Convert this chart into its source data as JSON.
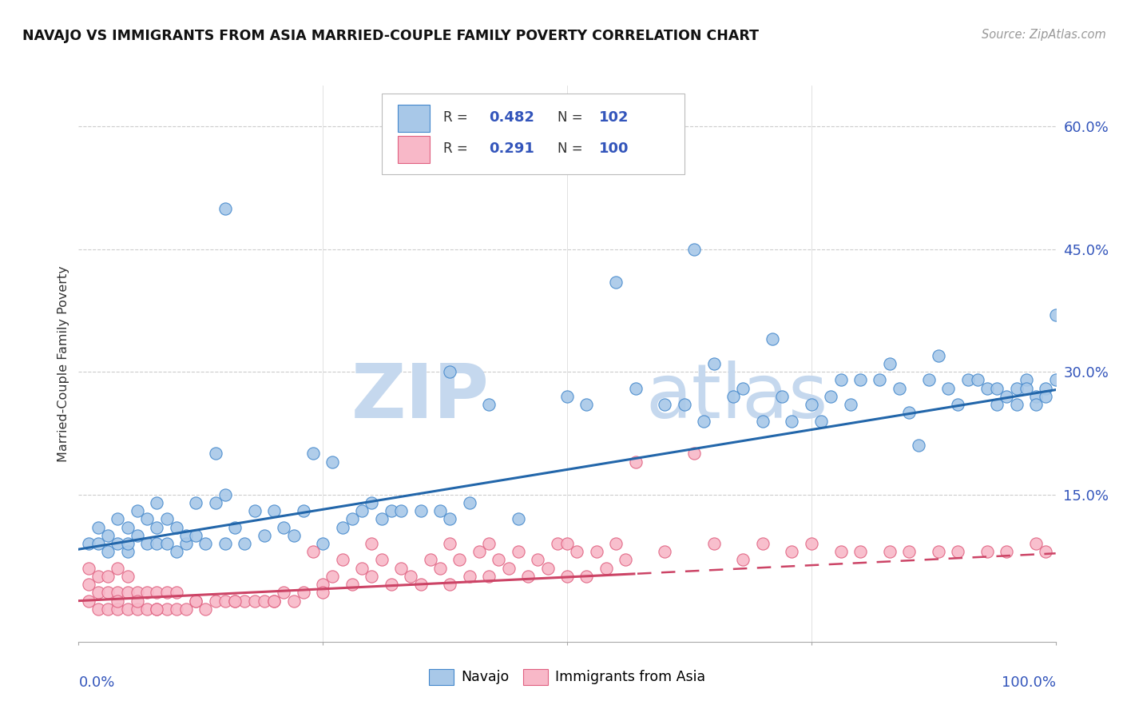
{
  "title": "NAVAJO VS IMMIGRANTS FROM ASIA MARRIED-COUPLE FAMILY POVERTY CORRELATION CHART",
  "source": "Source: ZipAtlas.com",
  "ylabel": "Married-Couple Family Poverty",
  "yticks": [
    0.0,
    0.15,
    0.3,
    0.45,
    0.6
  ],
  "ytick_labels": [
    "",
    "15.0%",
    "30.0%",
    "45.0%",
    "60.0%"
  ],
  "xlim": [
    0.0,
    1.0
  ],
  "ylim": [
    -0.03,
    0.65
  ],
  "navajo_color": "#a8c8e8",
  "navajo_edge_color": "#4488cc",
  "navajo_line_color": "#2266aa",
  "asia_color": "#f8b8c8",
  "asia_edge_color": "#e06080",
  "asia_line_color": "#cc4466",
  "navajo_line_intercept": 0.083,
  "navajo_line_slope": 0.195,
  "asia_line_intercept": 0.02,
  "asia_line_slope": 0.058,
  "asia_line_solid_end": 0.57,
  "watermark_zip": "ZIP",
  "watermark_atlas": "atlas",
  "watermark_color": "#c5d8ee",
  "navajo_x": [
    0.01,
    0.02,
    0.02,
    0.03,
    0.03,
    0.04,
    0.04,
    0.05,
    0.05,
    0.05,
    0.06,
    0.06,
    0.07,
    0.07,
    0.08,
    0.08,
    0.08,
    0.09,
    0.09,
    0.1,
    0.1,
    0.11,
    0.11,
    0.12,
    0.12,
    0.13,
    0.14,
    0.14,
    0.15,
    0.15,
    0.16,
    0.17,
    0.18,
    0.19,
    0.2,
    0.21,
    0.22,
    0.23,
    0.24,
    0.25,
    0.26,
    0.27,
    0.28,
    0.29,
    0.3,
    0.31,
    0.32,
    0.33,
    0.35,
    0.37,
    0.38,
    0.4,
    0.42,
    0.45,
    0.5,
    0.52,
    0.55,
    0.57,
    0.6,
    0.62,
    0.63,
    0.64,
    0.65,
    0.67,
    0.68,
    0.7,
    0.71,
    0.72,
    0.73,
    0.75,
    0.76,
    0.77,
    0.78,
    0.79,
    0.8,
    0.82,
    0.83,
    0.84,
    0.85,
    0.86,
    0.87,
    0.88,
    0.89,
    0.9,
    0.91,
    0.92,
    0.93,
    0.94,
    0.94,
    0.95,
    0.96,
    0.96,
    0.97,
    0.97,
    0.98,
    0.98,
    0.99,
    0.99,
    1.0,
    1.0,
    0.15,
    0.38
  ],
  "navajo_y": [
    0.09,
    0.09,
    0.11,
    0.08,
    0.1,
    0.09,
    0.12,
    0.08,
    0.11,
    0.09,
    0.1,
    0.13,
    0.09,
    0.12,
    0.09,
    0.11,
    0.14,
    0.09,
    0.12,
    0.08,
    0.11,
    0.09,
    0.1,
    0.1,
    0.14,
    0.09,
    0.2,
    0.14,
    0.09,
    0.15,
    0.11,
    0.09,
    0.13,
    0.1,
    0.13,
    0.11,
    0.1,
    0.13,
    0.2,
    0.09,
    0.19,
    0.11,
    0.12,
    0.13,
    0.14,
    0.12,
    0.13,
    0.13,
    0.13,
    0.13,
    0.12,
    0.14,
    0.26,
    0.12,
    0.27,
    0.26,
    0.41,
    0.28,
    0.26,
    0.26,
    0.45,
    0.24,
    0.31,
    0.27,
    0.28,
    0.24,
    0.34,
    0.27,
    0.24,
    0.26,
    0.24,
    0.27,
    0.29,
    0.26,
    0.29,
    0.29,
    0.31,
    0.28,
    0.25,
    0.21,
    0.29,
    0.32,
    0.28,
    0.26,
    0.29,
    0.29,
    0.28,
    0.28,
    0.26,
    0.27,
    0.28,
    0.26,
    0.29,
    0.28,
    0.27,
    0.26,
    0.28,
    0.27,
    0.29,
    0.37,
    0.5,
    0.3
  ],
  "asia_x": [
    0.01,
    0.01,
    0.01,
    0.02,
    0.02,
    0.02,
    0.03,
    0.03,
    0.03,
    0.04,
    0.04,
    0.04,
    0.05,
    0.05,
    0.05,
    0.06,
    0.06,
    0.07,
    0.07,
    0.08,
    0.08,
    0.09,
    0.09,
    0.1,
    0.1,
    0.11,
    0.12,
    0.13,
    0.14,
    0.15,
    0.16,
    0.17,
    0.18,
    0.19,
    0.2,
    0.21,
    0.22,
    0.23,
    0.24,
    0.25,
    0.26,
    0.27,
    0.28,
    0.29,
    0.3,
    0.31,
    0.32,
    0.33,
    0.34,
    0.35,
    0.36,
    0.37,
    0.38,
    0.39,
    0.4,
    0.41,
    0.42,
    0.43,
    0.44,
    0.45,
    0.46,
    0.47,
    0.48,
    0.49,
    0.5,
    0.51,
    0.52,
    0.53,
    0.54,
    0.55,
    0.56,
    0.57,
    0.6,
    0.63,
    0.65,
    0.68,
    0.7,
    0.73,
    0.75,
    0.78,
    0.8,
    0.83,
    0.85,
    0.88,
    0.9,
    0.93,
    0.95,
    0.98,
    0.99,
    0.04,
    0.06,
    0.08,
    0.12,
    0.16,
    0.2,
    0.25,
    0.3,
    0.38,
    0.42,
    0.5
  ],
  "asia_y": [
    0.02,
    0.04,
    0.06,
    0.01,
    0.03,
    0.05,
    0.01,
    0.03,
    0.05,
    0.01,
    0.03,
    0.06,
    0.01,
    0.03,
    0.05,
    0.01,
    0.03,
    0.01,
    0.03,
    0.01,
    0.03,
    0.01,
    0.03,
    0.01,
    0.03,
    0.01,
    0.02,
    0.01,
    0.02,
    0.02,
    0.02,
    0.02,
    0.02,
    0.02,
    0.02,
    0.03,
    0.02,
    0.03,
    0.08,
    0.04,
    0.05,
    0.07,
    0.04,
    0.06,
    0.05,
    0.07,
    0.04,
    0.06,
    0.05,
    0.04,
    0.07,
    0.06,
    0.04,
    0.07,
    0.05,
    0.08,
    0.05,
    0.07,
    0.06,
    0.08,
    0.05,
    0.07,
    0.06,
    0.09,
    0.05,
    0.08,
    0.05,
    0.08,
    0.06,
    0.09,
    0.07,
    0.19,
    0.08,
    0.2,
    0.09,
    0.07,
    0.09,
    0.08,
    0.09,
    0.08,
    0.08,
    0.08,
    0.08,
    0.08,
    0.08,
    0.08,
    0.08,
    0.09,
    0.08,
    0.02,
    0.02,
    0.01,
    0.02,
    0.02,
    0.02,
    0.03,
    0.09,
    0.09,
    0.09,
    0.09
  ]
}
